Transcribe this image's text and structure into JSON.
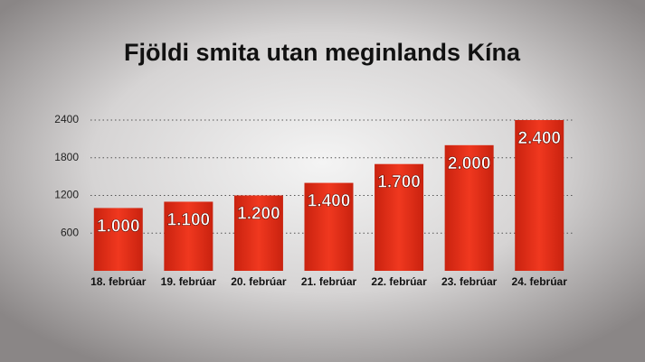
{
  "chart_data": {
    "type": "bar",
    "title": "Fjöldi smita utan meginlands Kína",
    "categories": [
      "18. febrúar",
      "19. febrúar",
      "20. febrúar",
      "21. febrúar",
      "22. febrúar",
      "23. febrúar",
      "24. febrúar"
    ],
    "values": [
      1000,
      1100,
      1200,
      1400,
      1700,
      2000,
      2400
    ],
    "value_labels": [
      "1.000",
      "1.100",
      "1.200",
      "1.400",
      "1.700",
      "2.000",
      "2.400"
    ],
    "color": "#e8321e",
    "ylim": [
      0,
      2400
    ],
    "yticks": [
      600,
      1200,
      1800,
      2400
    ],
    "grid": true
  }
}
